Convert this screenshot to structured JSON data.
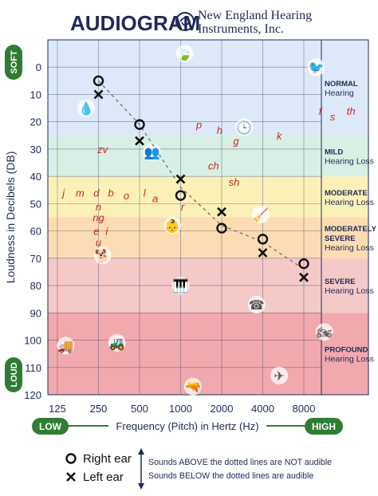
{
  "header": {
    "title": "AUDIOGRAM",
    "brand_line1": "New England Hearing",
    "brand_line2": "Instruments, Inc."
  },
  "colors": {
    "plot_bg": "#dde9f8",
    "grid": "#1d2a58",
    "axis_text": "#1d2a58",
    "pill_green": "#2e7d32",
    "letters": "#c62828",
    "marker": "#111111",
    "band_normal": "#dde9f8",
    "band_mild": "#d9efe5",
    "band_moderate": "#fbf1b8",
    "band_mod_severe": "#fcdcb2",
    "band_severe": "#f6c9c9",
    "band_profound": "#f2a9ae"
  },
  "chart_data": {
    "type": "scatter",
    "title": "AUDIOGRAM",
    "xlabel": "Frequency (Pitch) in Hertz (Hz)",
    "ylabel": "Loudness in Decibels (DB)",
    "x_categories": [
      "125",
      "250",
      "500",
      "1000",
      "2000",
      "4000",
      "8000"
    ],
    "y_ticks": [
      0,
      10,
      20,
      30,
      40,
      50,
      60,
      70,
      80,
      90,
      100,
      110,
      120
    ],
    "ylim": [
      -10,
      120
    ],
    "y_inverted": true,
    "grid": true,
    "x_low_label": "LOW",
    "x_high_label": "HIGH",
    "y_top_label": "SOFT",
    "y_bottom_label": "LOUD",
    "series": [
      {
        "name": "Right ear",
        "marker": "circle",
        "points": [
          {
            "x": "250",
            "y": 5
          },
          {
            "x": "500",
            "y": 21
          },
          {
            "x": "1000",
            "y": 47
          },
          {
            "x": "2000",
            "y": 59
          },
          {
            "x": "4000",
            "y": 63
          },
          {
            "x": "8000",
            "y": 72
          }
        ]
      },
      {
        "name": "Left ear",
        "marker": "x",
        "points": [
          {
            "x": "250",
            "y": 10
          },
          {
            "x": "500",
            "y": 27
          },
          {
            "x": "1000",
            "y": 41
          },
          {
            "x": "2000",
            "y": 53
          },
          {
            "x": "4000",
            "y": 68
          },
          {
            "x": "8000",
            "y": 77
          }
        ]
      }
    ],
    "banana_line": [
      {
        "x": "250",
        "y": 5
      },
      {
        "x": "500",
        "y": 21
      },
      {
        "x": "1000",
        "y": 44
      },
      {
        "x": "2000",
        "y": 58
      },
      {
        "x": "4000",
        "y": 64
      },
      {
        "x": "8000",
        "y": 74
      }
    ],
    "hearing_levels": [
      {
        "lines": [
          "NORMAL",
          "Hearing"
        ],
        "from": -10,
        "to": 25
      },
      {
        "lines": [
          "MILD",
          "Hearing Loss"
        ],
        "from": 25,
        "to": 40
      },
      {
        "lines": [
          "MODERATE",
          "Hearing Loss"
        ],
        "from": 40,
        "to": 55
      },
      {
        "lines": [
          "MODERATELY",
          "SEVERE",
          "Hearing Loss"
        ],
        "from": 55,
        "to": 70
      },
      {
        "lines": [
          "SEVERE",
          "Hearing Loss"
        ],
        "from": 70,
        "to": 90
      },
      {
        "lines": [
          "PROFOUND",
          "Hearing Loss"
        ],
        "from": 90,
        "to": 120
      }
    ],
    "speech_sounds": [
      {
        "text": "f",
        "x": 6.4,
        "y": 16
      },
      {
        "text": "s",
        "x": 6.7,
        "y": 18
      },
      {
        "text": "th",
        "x": 7.15,
        "y": 16
      },
      {
        "text": "p",
        "x": 3.45,
        "y": 21
      },
      {
        "text": "h",
        "x": 3.95,
        "y": 23
      },
      {
        "text": "g",
        "x": 4.35,
        "y": 27
      },
      {
        "text": "k",
        "x": 5.4,
        "y": 25
      },
      {
        "text": "zv",
        "x": 1.1,
        "y": 30
      },
      {
        "text": "ch",
        "x": 3.8,
        "y": 36
      },
      {
        "text": "sh",
        "x": 4.3,
        "y": 42
      },
      {
        "text": "j",
        "x": 0.15,
        "y": 46
      },
      {
        "text": "m",
        "x": 0.55,
        "y": 46
      },
      {
        "text": "d",
        "x": 0.95,
        "y": 46
      },
      {
        "text": "b",
        "x": 1.3,
        "y": 46
      },
      {
        "text": "o",
        "x": 1.68,
        "y": 47
      },
      {
        "text": "l",
        "x": 2.12,
        "y": 46
      },
      {
        "text": "a",
        "x": 2.38,
        "y": 48
      },
      {
        "text": "r",
        "x": 3.05,
        "y": 51
      },
      {
        "text": "n",
        "x": 1.0,
        "y": 51
      },
      {
        "text": "ng",
        "x": 1.0,
        "y": 55
      },
      {
        "text": "e",
        "x": 0.95,
        "y": 60
      },
      {
        "text": "i",
        "x": 1.2,
        "y": 60
      },
      {
        "text": "u",
        "x": 1.0,
        "y": 64
      }
    ],
    "illustrations": [
      {
        "icon": "leaves-icon",
        "x": 3.1,
        "y": -5
      },
      {
        "icon": "bird-icon",
        "x": 6.3,
        "y": 0
      },
      {
        "icon": "water-drip-icon",
        "x": 0.7,
        "y": 15
      },
      {
        "icon": "clock-icon",
        "x": 4.55,
        "y": 22
      },
      {
        "icon": "people-talking-icon",
        "x": 2.3,
        "y": 31
      },
      {
        "icon": "baby-icon",
        "x": 2.8,
        "y": 58
      },
      {
        "icon": "vacuum-icon",
        "x": 4.95,
        "y": 54
      },
      {
        "icon": "dog-icon",
        "x": 1.1,
        "y": 69
      },
      {
        "icon": "piano-icon",
        "x": 3.0,
        "y": 80
      },
      {
        "icon": "phone-icon",
        "x": 4.85,
        "y": 87
      },
      {
        "icon": "lawnmower-icon",
        "x": 1.45,
        "y": 101
      },
      {
        "icon": "truck-icon",
        "x": 0.2,
        "y": 102
      },
      {
        "icon": "motorcycle-icon",
        "x": 6.5,
        "y": 97
      },
      {
        "icon": "gun-icon",
        "x": 3.3,
        "y": 117
      },
      {
        "icon": "airplane-icon",
        "x": 5.4,
        "y": 113
      }
    ]
  },
  "legend": {
    "right_ear": "Right ear",
    "left_ear": "Left ear",
    "note_above": "Sounds ABOVE the dotted lines are NOT audible",
    "note_below": "Sounds BELOW the dotted lines are audible"
  }
}
